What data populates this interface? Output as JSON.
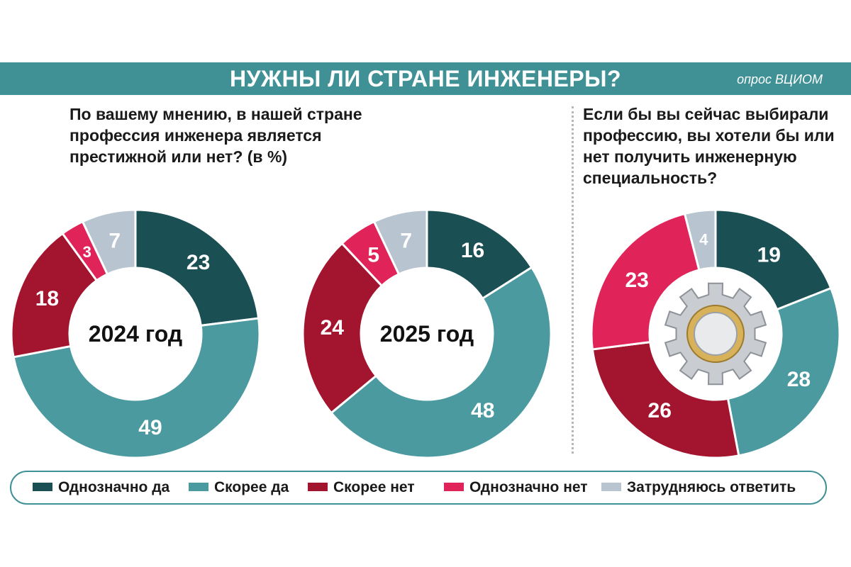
{
  "header": {
    "title": "НУЖНЫ ЛИ СТРАНЕ ИНЖЕНЕРЫ?",
    "source": "опрос ВЦИОМ"
  },
  "questions": {
    "prestige": "По вашему мнению, в нашей стране профессия инженера является престижной или нет? (в %)",
    "choice": "Если бы вы сейчас выбирали профессию, вы хотели бы или нет получить инженерную специальность?"
  },
  "colors": {
    "definitely_yes": "#1a4f54",
    "rather_yes": "#4a9aa0",
    "rather_no": "#a3142e",
    "definitely_no": "#e0245a",
    "hard_to_say": "#b8c5d0"
  },
  "legend": [
    {
      "key": "definitely_yes",
      "label": "Однозначно да"
    },
    {
      "key": "rather_yes",
      "label": "Скорее да"
    },
    {
      "key": "rather_no",
      "label": "Скорее нет"
    },
    {
      "key": "definitely_no",
      "label": "Однозначно нет"
    },
    {
      "key": "hard_to_say",
      "label": "Затрудняюсь ответить"
    }
  ],
  "chart_data": [
    {
      "type": "pie",
      "donut": true,
      "center_label": "2024 год",
      "categories": [
        "Однозначно да",
        "Скорее да",
        "Скорее нет",
        "Однозначно нет",
        "Затрудняюсь ответить"
      ],
      "keys": [
        "definitely_yes",
        "rather_yes",
        "rather_no",
        "definitely_no",
        "hard_to_say"
      ],
      "values": [
        23,
        49,
        18,
        3,
        7
      ]
    },
    {
      "type": "pie",
      "donut": true,
      "center_label": "2025 год",
      "categories": [
        "Однозначно да",
        "Скорее да",
        "Скорее нет",
        "Однозначно нет",
        "Затрудняюсь ответить"
      ],
      "keys": [
        "definitely_yes",
        "rather_yes",
        "rather_no",
        "definitely_no",
        "hard_to_say"
      ],
      "values": [
        16,
        48,
        24,
        5,
        7
      ]
    },
    {
      "type": "pie",
      "donut": true,
      "center_label": "",
      "center_icon": "gear-icon",
      "categories": [
        "Однозначно да",
        "Скорее да",
        "Скорее нет",
        "Однозначно нет",
        "Затрудняюсь ответить"
      ],
      "keys": [
        "definitely_yes",
        "rather_yes",
        "rather_no",
        "definitely_no",
        "hard_to_say"
      ],
      "values": [
        19,
        28,
        26,
        23,
        4
      ]
    }
  ]
}
